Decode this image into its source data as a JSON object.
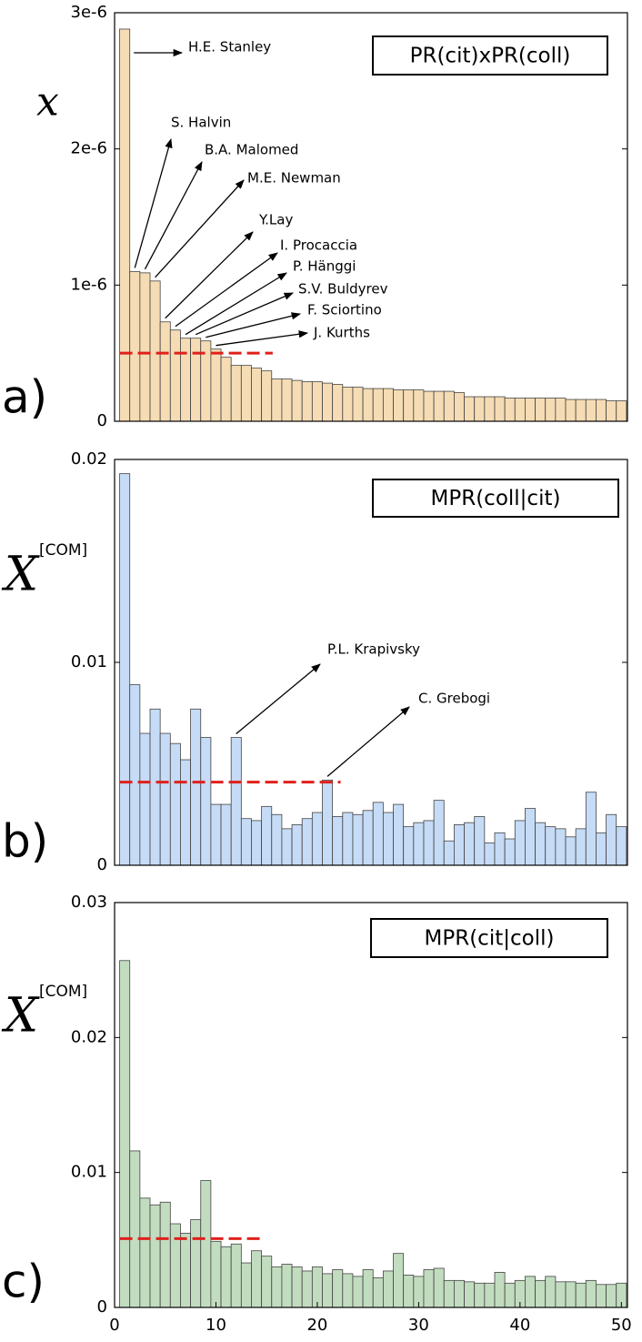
{
  "chart_data": [
    {
      "type": "bar",
      "title": "PR(cit)xPR(coll)",
      "panel_label": "a)",
      "ylabel": "x",
      "color": "#f5dcb4",
      "x": [
        1,
        2,
        3,
        4,
        5,
        6,
        7,
        8,
        9,
        10,
        11,
        12,
        13,
        14,
        15,
        16,
        17,
        18,
        19,
        20,
        21,
        22,
        23,
        24,
        25,
        26,
        27,
        28,
        29,
        30,
        31,
        32,
        33,
        34,
        35,
        36,
        37,
        38,
        39,
        40,
        41,
        42,
        43,
        44,
        45,
        46,
        47,
        48,
        49,
        50
      ],
      "values": [
        2.88e-06,
        1.1e-06,
        1.09e-06,
        1.03e-06,
        7.3e-07,
        6.7e-07,
        6.1e-07,
        6.1e-07,
        5.9e-07,
        5.3e-07,
        4.7e-07,
        4.1e-07,
        4.1e-07,
        3.9e-07,
        3.7e-07,
        3.1e-07,
        3.1e-07,
        3e-07,
        2.9e-07,
        2.9e-07,
        2.8e-07,
        2.7e-07,
        2.5e-07,
        2.5e-07,
        2.4e-07,
        2.4e-07,
        2.4e-07,
        2.3e-07,
        2.3e-07,
        2.3e-07,
        2.2e-07,
        2.2e-07,
        2.2e-07,
        2.1e-07,
        1.8e-07,
        1.8e-07,
        1.8e-07,
        1.8e-07,
        1.7e-07,
        1.7e-07,
        1.7e-07,
        1.7e-07,
        1.7e-07,
        1.7e-07,
        1.6e-07,
        1.6e-07,
        1.6e-07,
        1.6e-07,
        1.5e-07,
        1.5e-07
      ],
      "xlim": [
        0,
        50.6
      ],
      "ylim": [
        0,
        3e-06
      ],
      "yticks": [
        0,
        {
          "value": 1e-06,
          "label": "1e-6"
        },
        {
          "value": 2e-06,
          "label": "2e-6"
        },
        {
          "value": 3e-06,
          "label": "3e-6"
        }
      ],
      "threshold": 5e-07,
      "threshold_x": [
        0.5,
        15.6
      ],
      "annotations": [
        {
          "text": "H.E. Stanley",
          "x": 1
        },
        {
          "text": "S. Halvin",
          "x": 2
        },
        {
          "text": "B.A. Malomed",
          "x": 3
        },
        {
          "text": "M.E. Newman",
          "x": 4
        },
        {
          "text": "Y.Lay",
          "x": 5
        },
        {
          "text": "I. Procaccia",
          "x": 6
        },
        {
          "text": "P. Hänggi",
          "x": 7
        },
        {
          "text": "S.V. Buldyrev",
          "x": 8
        },
        {
          "text": "F. Sciortino",
          "x": 9
        },
        {
          "text": "J. Kurths",
          "x": 10
        }
      ]
    },
    {
      "type": "bar",
      "title": "MPR(coll|cit)",
      "panel_label": "b)",
      "ylabel": "X",
      "ylabel_sup": "[COM]",
      "color": "#c6dbf5",
      "x": [
        1,
        2,
        3,
        4,
        5,
        6,
        7,
        8,
        9,
        10,
        11,
        12,
        13,
        14,
        15,
        16,
        17,
        18,
        19,
        20,
        21,
        22,
        23,
        24,
        25,
        26,
        27,
        28,
        29,
        30,
        31,
        32,
        33,
        34,
        35,
        36,
        37,
        38,
        39,
        40,
        41,
        42,
        43,
        44,
        45,
        46,
        47,
        48,
        49,
        50
      ],
      "values": [
        0.0193,
        0.0089,
        0.0065,
        0.0077,
        0.0065,
        0.006,
        0.0052,
        0.0077,
        0.0063,
        0.003,
        0.003,
        0.0063,
        0.0023,
        0.0022,
        0.0029,
        0.0025,
        0.0018,
        0.002,
        0.0023,
        0.0026,
        0.0042,
        0.0024,
        0.0026,
        0.0025,
        0.0027,
        0.0031,
        0.0026,
        0.003,
        0.0019,
        0.0021,
        0.0022,
        0.0032,
        0.0012,
        0.002,
        0.0021,
        0.0024,
        0.0011,
        0.0016,
        0.0013,
        0.0022,
        0.0028,
        0.0021,
        0.0019,
        0.0018,
        0.0014,
        0.0018,
        0.0036,
        0.0016,
        0.0025,
        0.0019
      ],
      "xlim": [
        0,
        50.6
      ],
      "ylim": [
        0,
        0.02
      ],
      "yticks": [
        0,
        0.01,
        0.02
      ],
      "threshold": 0.0041,
      "threshold_x": [
        0.5,
        22.3
      ],
      "annotations": [
        {
          "text": "P.L. Krapivsky",
          "x": 12
        },
        {
          "text": "C. Grebogi",
          "x": 21
        }
      ]
    },
    {
      "type": "bar",
      "title": "MPR(cit|coll)",
      "panel_label": "c)",
      "ylabel": "X",
      "ylabel_sup": "[COM]",
      "color": "#c2dcc0",
      "x": [
        1,
        2,
        3,
        4,
        5,
        6,
        7,
        8,
        9,
        10,
        11,
        12,
        13,
        14,
        15,
        16,
        17,
        18,
        19,
        20,
        21,
        22,
        23,
        24,
        25,
        26,
        27,
        28,
        29,
        30,
        31,
        32,
        33,
        34,
        35,
        36,
        37,
        38,
        39,
        40,
        41,
        42,
        43,
        44,
        45,
        46,
        47,
        48,
        49,
        50
      ],
      "values": [
        0.0257,
        0.0116,
        0.0081,
        0.0076,
        0.0078,
        0.0062,
        0.0055,
        0.0065,
        0.0094,
        0.0049,
        0.0045,
        0.0047,
        0.0033,
        0.0042,
        0.0038,
        0.003,
        0.0032,
        0.003,
        0.0027,
        0.003,
        0.0025,
        0.0028,
        0.0025,
        0.0023,
        0.0028,
        0.0022,
        0.0027,
        0.004,
        0.0024,
        0.0023,
        0.0028,
        0.0029,
        0.002,
        0.002,
        0.0019,
        0.0018,
        0.0018,
        0.0026,
        0.0018,
        0.002,
        0.0023,
        0.002,
        0.0023,
        0.0019,
        0.0019,
        0.0018,
        0.002,
        0.0017,
        0.0017,
        0.0018
      ],
      "xlim": [
        0,
        50.6
      ],
      "ylim": [
        0,
        0.03
      ],
      "yticks": [
        0,
        0.01,
        0.02,
        0.03
      ],
      "xticks": [
        0,
        10,
        20,
        30,
        40,
        50
      ],
      "threshold": 0.0051,
      "threshold_x": [
        0.5,
        14.5
      ]
    }
  ]
}
